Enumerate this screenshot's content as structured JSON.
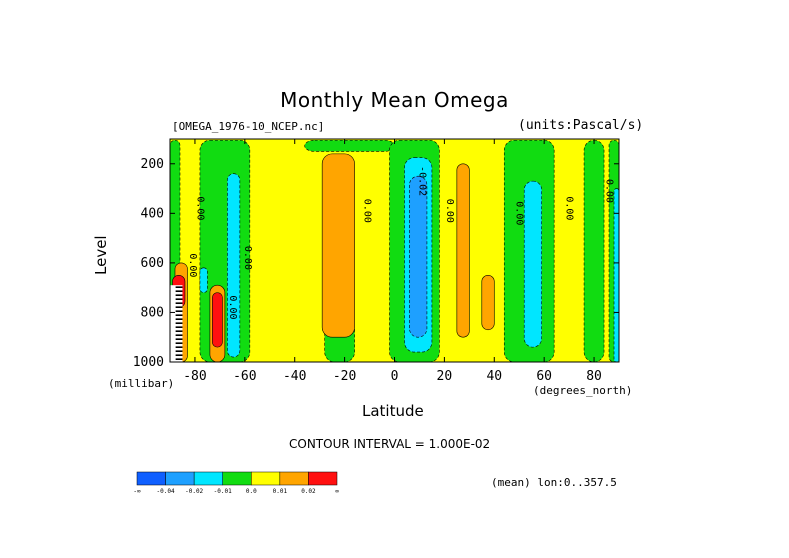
{
  "chart_data": {
    "type": "heatmap",
    "title": "Monthly Mean Omega",
    "subtitle_left": "[OMEGA_1976-10_NCEP.nc]",
    "subtitle_right": "(units:Pascal/s)",
    "xlabel": "Latitude",
    "xunit": "(degrees_north)",
    "ylabel": "Level",
    "yunit": "(millibar)",
    "xlim": [
      -90,
      90
    ],
    "ylim": [
      1000,
      100
    ],
    "x_ticks": [
      -80,
      -60,
      -40,
      -20,
      0,
      20,
      40,
      60,
      80
    ],
    "x_tick_labels": [
      "-80",
      "-60",
      "-40",
      "-20",
      "0",
      "20",
      "40",
      "60",
      "80"
    ],
    "y_ticks": [
      200,
      400,
      600,
      800,
      1000
    ],
    "y_tick_labels": [
      "200",
      "400",
      "600",
      "800",
      "1000"
    ],
    "contour_interval": "CONTOUR INTERVAL = 1.000E-02",
    "mean_note": "(mean) lon:0..357.5",
    "colorbar": {
      "labels": [
        "-∞",
        "-0.04",
        "-0.02",
        "-0.01",
        "0.0",
        "0.01",
        "0.02",
        "∞"
      ],
      "colors": [
        "#0f5fff",
        "#1ea0ff",
        "#00e6ff",
        "#11dc11",
        "#ffff00",
        "#ffa500",
        "#ff1010"
      ]
    },
    "background_class": "0.0",
    "regions": [
      {
        "name": "green band",
        "class": "-0.01",
        "x": [
          -90,
          -86
        ],
        "y": [
          105,
          1000
        ]
      },
      {
        "name": "green band",
        "class": "-0.01",
        "x": [
          -78,
          -58
        ],
        "y": [
          105,
          1000
        ]
      },
      {
        "name": "green band",
        "class": "-0.01",
        "x": [
          -36,
          0
        ],
        "y": [
          105,
          150
        ]
      },
      {
        "name": "green band",
        "class": "-0.01",
        "x": [
          -28,
          -16
        ],
        "y": [
          830,
          1000
        ]
      },
      {
        "name": "green band",
        "class": "-0.01",
        "x": [
          -2,
          18
        ],
        "y": [
          105,
          1000
        ]
      },
      {
        "name": "green band",
        "class": "-0.01",
        "x": [
          44,
          64
        ],
        "y": [
          105,
          1000
        ]
      },
      {
        "name": "green band",
        "class": "-0.01",
        "x": [
          76,
          84
        ],
        "y": [
          105,
          1000
        ]
      },
      {
        "name": "green band",
        "class": "-0.01",
        "x": [
          86,
          90
        ],
        "y": [
          105,
          1000
        ]
      },
      {
        "name": "cyan cell",
        "class": "-0.02",
        "x": [
          -67,
          -62
        ],
        "y": [
          240,
          980
        ]
      },
      {
        "name": "cyan cell",
        "class": "-0.02",
        "x": [
          -78,
          -75
        ],
        "y": [
          620,
          720
        ]
      },
      {
        "name": "cyan cell",
        "class": "-0.02",
        "x": [
          4,
          15
        ],
        "y": [
          175,
          960
        ]
      },
      {
        "name": "cyan cell",
        "class": "-0.02",
        "x": [
          52,
          59
        ],
        "y": [
          270,
          940
        ]
      },
      {
        "name": "cyan cell",
        "class": "-0.02",
        "x": [
          88,
          90
        ],
        "y": [
          300,
          1000
        ]
      },
      {
        "name": "blue cell",
        "class": "-0.04",
        "x": [
          6,
          13
        ],
        "y": [
          250,
          900
        ]
      },
      {
        "name": "orange cell",
        "class": "0.01",
        "x": [
          -29,
          -16
        ],
        "y": [
          160,
          900
        ]
      },
      {
        "name": "orange cell",
        "class": "0.01",
        "x": [
          25,
          30
        ],
        "y": [
          200,
          900
        ]
      },
      {
        "name": "orange cell",
        "class": "0.01",
        "x": [
          35,
          40
        ],
        "y": [
          650,
          870
        ]
      },
      {
        "name": "orange cell",
        "class": "0.01",
        "x": [
          -88,
          -83
        ],
        "y": [
          600,
          1000
        ]
      },
      {
        "name": "orange cell",
        "class": "0.01",
        "x": [
          -74,
          -68
        ],
        "y": [
          690,
          1000
        ]
      },
      {
        "name": "red cell",
        "class": "0.02",
        "x": [
          -73,
          -69
        ],
        "y": [
          720,
          940
        ]
      },
      {
        "name": "red cell",
        "class": "0.02",
        "x": [
          -89,
          -84
        ],
        "y": [
          650,
          780
        ]
      },
      {
        "name": "no-data",
        "class": "none",
        "x": [
          -90,
          -85
        ],
        "y": [
          690,
          1000
        ]
      }
    ],
    "contour_labels": [
      {
        "text": "0.00",
        "x": -79,
        "y": 380
      },
      {
        "text": "0.00",
        "x": -60,
        "y": 580
      },
      {
        "text": "0.00",
        "x": -82,
        "y": 610
      },
      {
        "text": "0.00",
        "x": -66,
        "y": 780
      },
      {
        "text": "0.00",
        "x": -12,
        "y": 390
      },
      {
        "text": "-0.02",
        "x": 10,
        "y": 270
      },
      {
        "text": "0.00",
        "x": 21,
        "y": 390
      },
      {
        "text": "0.00",
        "x": 49,
        "y": 400
      },
      {
        "text": "0.00",
        "x": 69,
        "y": 380
      },
      {
        "text": "0.00",
        "x": 85,
        "y": 310
      }
    ]
  }
}
